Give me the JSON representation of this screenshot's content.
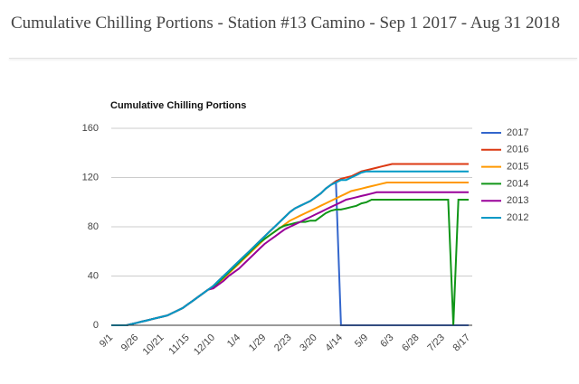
{
  "page_title": "Cumulative Chilling Portions - Station #13 Camino - Sep 1 2017 - Aug 31 2018",
  "chart_data": {
    "type": "line",
    "title": "Cumulative Chilling Portions",
    "categories": [
      "9/1",
      null,
      null,
      null,
      null,
      "9/26",
      null,
      null,
      null,
      null,
      "10/21",
      null,
      null,
      null,
      null,
      "11/15",
      null,
      null,
      null,
      null,
      "12/10",
      null,
      null,
      null,
      null,
      "1/4",
      null,
      null,
      null,
      null,
      "1/29",
      null,
      null,
      null,
      null,
      "2/23",
      null,
      null,
      null,
      null,
      "3/20",
      null,
      null,
      null,
      null,
      "4/14",
      null,
      null,
      null,
      null,
      "5/9",
      null,
      null,
      null,
      null,
      "6/3",
      null,
      null,
      null,
      null,
      "6/28",
      null,
      null,
      null,
      null,
      "7/23",
      null,
      null,
      null,
      null,
      "8/17"
    ],
    "ylim": [
      0,
      160
    ],
    "yticks": [
      0,
      40,
      80,
      120,
      160
    ],
    "grid": true,
    "legend": "right",
    "series": [
      {
        "name": "2017",
        "color": "#3366cc",
        "values": [
          0,
          0,
          0,
          0,
          1,
          2,
          3,
          4,
          5,
          6,
          7,
          8,
          10,
          12,
          14,
          17,
          20,
          23,
          26,
          29,
          32,
          36,
          40,
          44,
          48,
          52,
          56,
          60,
          64,
          68,
          72,
          76,
          80,
          84,
          88,
          92,
          95,
          97,
          99,
          101,
          104,
          107,
          111,
          114,
          117,
          0,
          0,
          0,
          0,
          0,
          0,
          0,
          0,
          0,
          0,
          0,
          0,
          0,
          0,
          0,
          0,
          0,
          0,
          0,
          0,
          0,
          0,
          0,
          0,
          0,
          0
        ]
      },
      {
        "name": "2016",
        "color": "#dc3912",
        "values": [
          0,
          0,
          0,
          0,
          1,
          2,
          3,
          4,
          5,
          6,
          7,
          8,
          10,
          12,
          14,
          17,
          20,
          23,
          26,
          29,
          32,
          36,
          40,
          44,
          48,
          52,
          56,
          60,
          64,
          68,
          72,
          76,
          80,
          84,
          88,
          92,
          95,
          97,
          99,
          101,
          104,
          107,
          111,
          114,
          117,
          119,
          120,
          121,
          123,
          125,
          126,
          127,
          128,
          129,
          130,
          131,
          131,
          131,
          131,
          131,
          131,
          131,
          131,
          131,
          131,
          131,
          131,
          131,
          131,
          131,
          131
        ]
      },
      {
        "name": "2015",
        "color": "#ff9900",
        "values": [
          0,
          0,
          0,
          0,
          1,
          2,
          3,
          4,
          5,
          6,
          7,
          8,
          10,
          12,
          14,
          17,
          20,
          23,
          26,
          29,
          30,
          34,
          38,
          42,
          46,
          50,
          54,
          58,
          62,
          66,
          70,
          73,
          76,
          79,
          82,
          85,
          87,
          89,
          91,
          93,
          95,
          97,
          99,
          101,
          103,
          105,
          107,
          109,
          110,
          111,
          112,
          113,
          114,
          115,
          116,
          116,
          116,
          116,
          116,
          116,
          116,
          116,
          116,
          116,
          116,
          116,
          116,
          116,
          116,
          116,
          116
        ]
      },
      {
        "name": "2014",
        "color": "#109618",
        "values": [
          0,
          0,
          0,
          0,
          1,
          2,
          3,
          4,
          5,
          6,
          7,
          8,
          10,
          12,
          14,
          17,
          20,
          23,
          26,
          29,
          31,
          35,
          39,
          43,
          47,
          51,
          55,
          59,
          63,
          67,
          70,
          73,
          76,
          79,
          81,
          82,
          83,
          84,
          84,
          85,
          85,
          88,
          91,
          93,
          94,
          94,
          95,
          96,
          97,
          99,
          100,
          102,
          102,
          102,
          102,
          102,
          102,
          102,
          102,
          102,
          102,
          102,
          102,
          102,
          102,
          102,
          102,
          0,
          102,
          102,
          102
        ]
      },
      {
        "name": "2013",
        "color": "#990099",
        "values": [
          0,
          0,
          0,
          0,
          1,
          2,
          3,
          4,
          5,
          6,
          7,
          8,
          10,
          12,
          14,
          17,
          20,
          23,
          26,
          29,
          30,
          33,
          36,
          40,
          43,
          46,
          50,
          54,
          58,
          62,
          66,
          69,
          72,
          75,
          78,
          80,
          82,
          84,
          86,
          88,
          90,
          92,
          94,
          96,
          98,
          100,
          102,
          103,
          104,
          105,
          106,
          107,
          108,
          108,
          108,
          108,
          108,
          108,
          108,
          108,
          108,
          108,
          108,
          108,
          108,
          108,
          108,
          108,
          108,
          108,
          108
        ]
      },
      {
        "name": "2012",
        "color": "#0099c6",
        "values": [
          0,
          0,
          0,
          0,
          1,
          2,
          3,
          4,
          5,
          6,
          7,
          8,
          10,
          12,
          14,
          17,
          20,
          23,
          26,
          29,
          32,
          36,
          40,
          44,
          48,
          52,
          56,
          60,
          64,
          68,
          72,
          76,
          80,
          84,
          88,
          92,
          95,
          97,
          99,
          101,
          104,
          107,
          111,
          114,
          116,
          118,
          118,
          120,
          122,
          124,
          125,
          125,
          125,
          125,
          125,
          125,
          125,
          125,
          125,
          125,
          125,
          125,
          125,
          125,
          125,
          125,
          125,
          125,
          125,
          125,
          125
        ]
      }
    ]
  }
}
